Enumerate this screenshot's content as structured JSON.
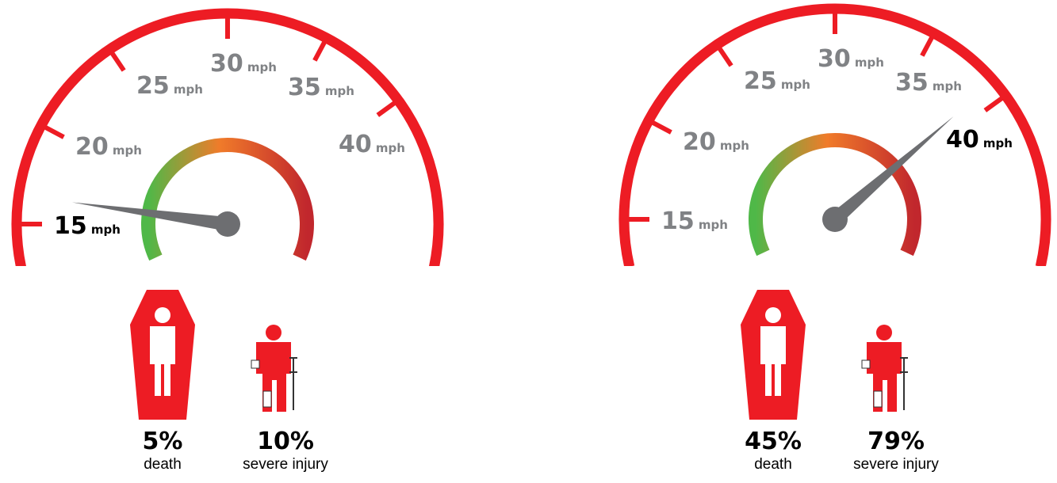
{
  "gauges": [
    {
      "ticks": [
        {
          "speed": "15",
          "unit": "mph",
          "highlight": true
        },
        {
          "speed": "20",
          "unit": "mph",
          "highlight": false
        },
        {
          "speed": "25",
          "unit": "mph",
          "highlight": false
        },
        {
          "speed": "30",
          "unit": "mph",
          "highlight": false
        },
        {
          "speed": "35",
          "unit": "mph",
          "highlight": false
        },
        {
          "speed": "40",
          "unit": "mph",
          "highlight": false
        }
      ],
      "stats": [
        {
          "value": "5%",
          "label": "death"
        },
        {
          "value": "10%",
          "label": "severe injury"
        }
      ]
    },
    {
      "ticks": [
        {
          "speed": "15",
          "unit": "mph",
          "highlight": false
        },
        {
          "speed": "20",
          "unit": "mph",
          "highlight": false
        },
        {
          "speed": "25",
          "unit": "mph",
          "highlight": false
        },
        {
          "speed": "30",
          "unit": "mph",
          "highlight": false
        },
        {
          "speed": "35",
          "unit": "mph",
          "highlight": false
        },
        {
          "speed": "40",
          "unit": "mph",
          "highlight": true
        }
      ],
      "stats": [
        {
          "value": "45%",
          "label": "death"
        },
        {
          "value": "79%",
          "label": "severe injury"
        }
      ]
    }
  ]
}
